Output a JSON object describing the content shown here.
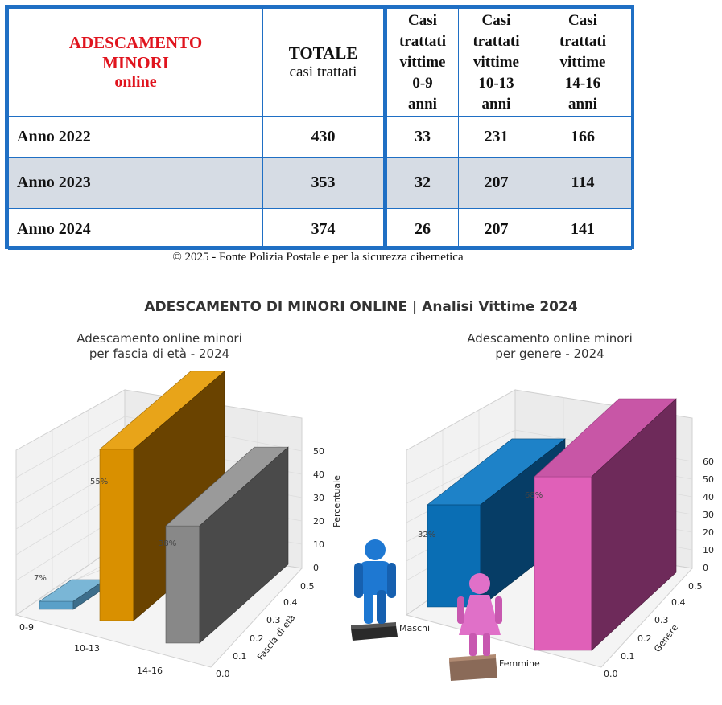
{
  "table": {
    "header": {
      "title_lines": [
        "ADESCAMENTO",
        "MINORI",
        "online"
      ],
      "total_lines": [
        "TOTALE",
        "casi trattati"
      ],
      "col_0_9": [
        "Casi",
        "trattati",
        "vittime",
        "0-9",
        "anni"
      ],
      "col_10_13": [
        "Casi",
        "trattati",
        "vittime",
        "10-13",
        "anni"
      ],
      "col_14_16": [
        "Casi",
        "trattati",
        "vittime",
        "14-16",
        "anni"
      ]
    },
    "rows": [
      {
        "label": "Anno 2022",
        "total": "430",
        "a": "33",
        "b": "231",
        "c": "166"
      },
      {
        "label": "Anno 2023",
        "total": "353",
        "a": "32",
        "b": "207",
        "c": "114"
      },
      {
        "label": "Anno 2024",
        "total": "374",
        "a": "26",
        "b": "207",
        "c": "141"
      }
    ]
  },
  "source": "© 2025 - Fonte Polizia Postale e per la sicurezza cibernetica",
  "main_title": "ADESCAMENTO DI MINORI ONLINE | Analisi Vittime 2024",
  "chart_data": [
    {
      "type": "bar",
      "subtitle": [
        "Adescamento online minori",
        "per fascia di età - 2024"
      ],
      "categories": [
        "0-9",
        "10-13",
        "14-16"
      ],
      "values": [
        7,
        55,
        38
      ],
      "data_labels": [
        "7%",
        "55%",
        "38%"
      ],
      "colors": [
        "#5aa0c8",
        "#d99000",
        "#888888"
      ],
      "zlabel": "Percentuale",
      "zticks": [
        "0",
        "10",
        "20",
        "30",
        "40",
        "50"
      ],
      "ylabel": "Fascia di età",
      "yticks": [
        "0.0",
        "0.1",
        "0.2",
        "0.3",
        "0.4",
        "0.5"
      ],
      "zlim": [
        0,
        55
      ]
    },
    {
      "type": "bar",
      "subtitle": [
        "Adescamento online minori",
        "per genere - 2024"
      ],
      "categories": [
        "Maschi",
        "Femmine"
      ],
      "values": [
        32,
        68
      ],
      "data_labels": [
        "32%",
        "68%"
      ],
      "colors": [
        "#0a6eb4",
        "#e060b8"
      ],
      "zticks": [
        "0",
        "10",
        "20",
        "30",
        "40",
        "50",
        "60"
      ],
      "ylabel": "Genere",
      "yticks": [
        "0.0",
        "0.1",
        "0.2",
        "0.3",
        "0.4",
        "0.5"
      ],
      "zlim": [
        0,
        68
      ]
    }
  ]
}
